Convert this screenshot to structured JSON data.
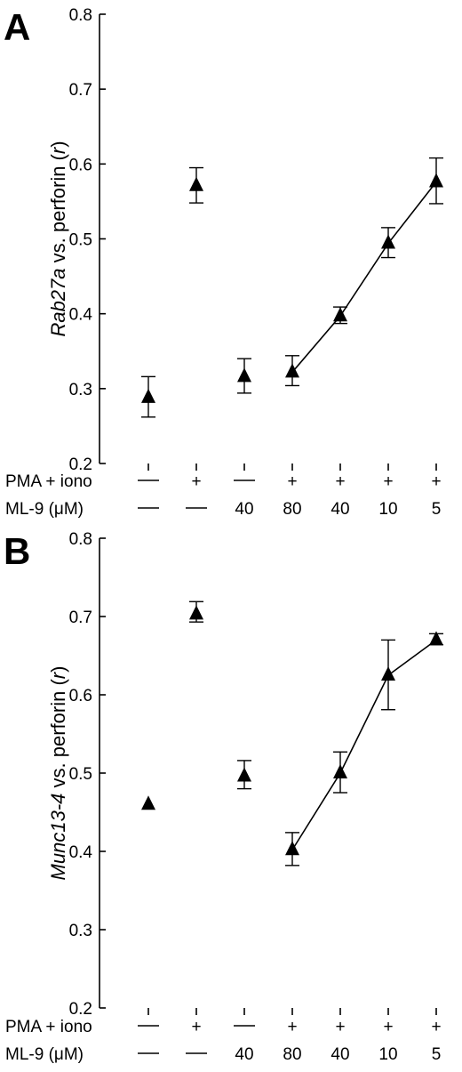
{
  "chart_data": [
    {
      "type": "scatter",
      "panel_label": "A",
      "ylabel_prefix": "Rab27a",
      "ylabel_middle": " vs. perforin (",
      "ylabel_var": "r",
      "ylabel_suffix": ")",
      "ylim": [
        0.2,
        0.8
      ],
      "y_ticks": [
        "0.2",
        "0.3",
        "0.4",
        "0.5",
        "0.6",
        "0.7",
        "0.8"
      ],
      "treatments": [
        {
          "name": "PMA + iono",
          "values": [
            "—",
            "+",
            "—",
            "+",
            "+",
            "+",
            "+"
          ]
        },
        {
          "name": "ML-9 (μM)",
          "values": [
            "—",
            "—",
            "40",
            "80",
            "40",
            "10",
            "5"
          ]
        }
      ],
      "values": [
        0.288,
        0.571,
        0.316,
        0.322,
        0.397,
        0.494,
        0.576
      ],
      "err_upper": [
        0.316,
        0.595,
        0.34,
        0.344,
        0.409,
        0.515,
        0.608
      ],
      "err_lower": [
        0.262,
        0.548,
        0.294,
        0.304,
        0.387,
        0.475,
        0.547
      ],
      "connected_from_index": 3
    },
    {
      "type": "scatter",
      "panel_label": "B",
      "ylabel_prefix": "Munc13-4",
      "ylabel_middle": " vs. perforin (",
      "ylabel_var": "r",
      "ylabel_suffix": ")",
      "ylim": [
        0.2,
        0.8
      ],
      "y_ticks": [
        "0.2",
        "0.3",
        "0.4",
        "0.5",
        "0.6",
        "0.7",
        "0.8"
      ],
      "treatments": [
        {
          "name": "PMA + iono",
          "values": [
            "—",
            "+",
            "—",
            "+",
            "+",
            "+",
            "+"
          ]
        },
        {
          "name": "ML-9 (μM)",
          "values": [
            "—",
            "—",
            "40",
            "80",
            "40",
            "10",
            "5"
          ]
        }
      ],
      "values": [
        0.46,
        0.703,
        0.496,
        0.402,
        0.5,
        0.625,
        0.67
      ],
      "err_upper": [
        null,
        0.719,
        0.516,
        0.424,
        0.527,
        0.67,
        0.678
      ],
      "err_lower": [
        null,
        0.693,
        0.48,
        0.382,
        0.475,
        0.581,
        0.664
      ],
      "connected_from_index": 3
    }
  ]
}
